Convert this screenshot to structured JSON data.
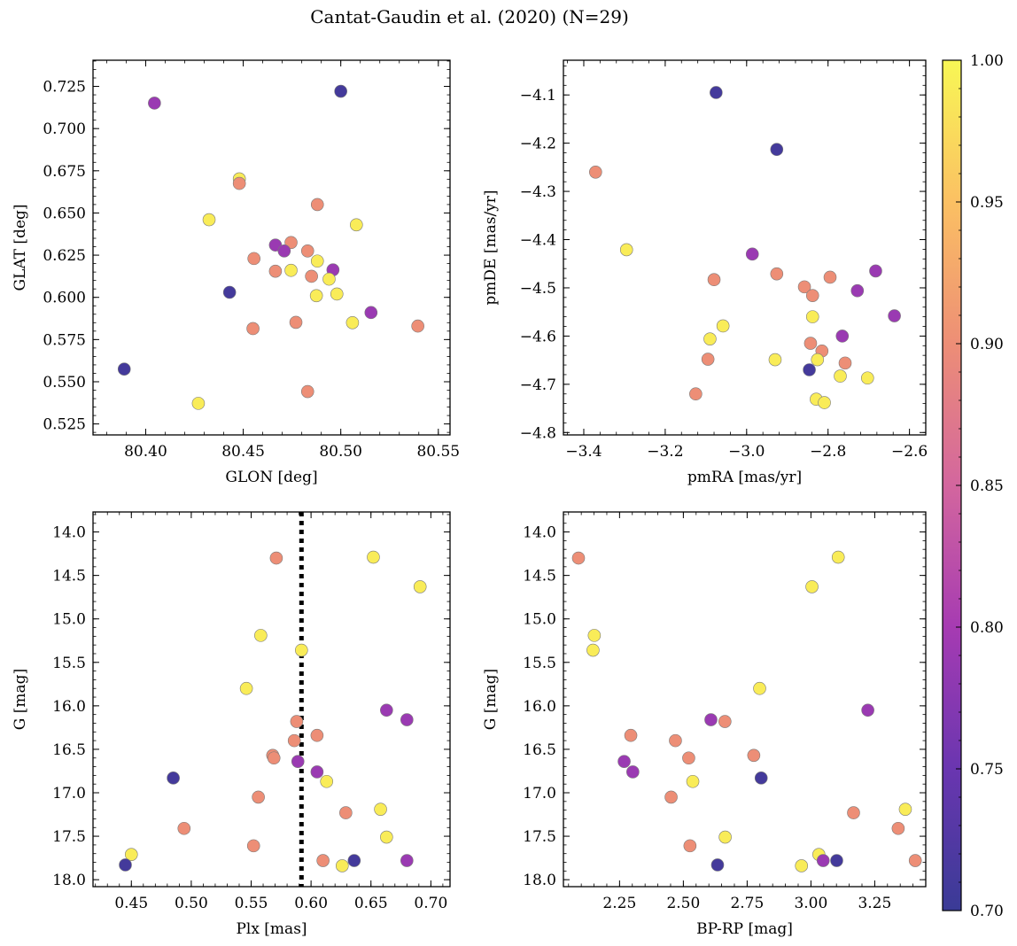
{
  "figure_title": "Cantat-Gaudin et al. (2020) (N=29)",
  "chart_data": [
    {
      "type": "scatter",
      "xlabel": "GLON [deg]",
      "ylabel": "GLAT [deg]",
      "xlim": [
        80.373,
        80.556
      ],
      "ylim": [
        0.5185,
        0.7405
      ],
      "xticks": [
        80.4,
        80.45,
        80.5,
        80.55
      ],
      "xtick_labels": [
        "80.40",
        "80.45",
        "80.50",
        "80.55"
      ],
      "yticks": [
        0.525,
        0.55,
        0.575,
        0.6,
        0.625,
        0.65,
        0.675,
        0.7,
        0.725
      ],
      "ytick_labels": [
        "0.525",
        "0.550",
        "0.575",
        "0.600",
        "0.625",
        "0.650",
        "0.675",
        "0.700",
        "0.725"
      ],
      "points": [
        {
          "x": 80.4045,
          "y": 0.7151,
          "c": 0.79
        },
        {
          "x": 80.5,
          "y": 0.7221,
          "c": 0.71
        },
        {
          "x": 80.448,
          "y": 0.6702,
          "c": 0.99
        },
        {
          "x": 80.448,
          "y": 0.6675,
          "c": 0.9
        },
        {
          "x": 80.488,
          "y": 0.655,
          "c": 0.9
        },
        {
          "x": 80.508,
          "y": 0.643,
          "c": 0.99
        },
        {
          "x": 80.4325,
          "y": 0.646,
          "c": 0.99
        },
        {
          "x": 80.4665,
          "y": 0.631,
          "c": 0.79
        },
        {
          "x": 80.4745,
          "y": 0.6325,
          "c": 0.9
        },
        {
          "x": 80.471,
          "y": 0.6275,
          "c": 0.79
        },
        {
          "x": 80.483,
          "y": 0.6275,
          "c": 0.9
        },
        {
          "x": 80.4555,
          "y": 0.623,
          "c": 0.9
        },
        {
          "x": 80.488,
          "y": 0.6215,
          "c": 0.99
        },
        {
          "x": 80.496,
          "y": 0.6163,
          "c": 0.79
        },
        {
          "x": 80.4665,
          "y": 0.6155,
          "c": 0.9
        },
        {
          "x": 80.4745,
          "y": 0.616,
          "c": 0.99
        },
        {
          "x": 80.485,
          "y": 0.6125,
          "c": 0.9
        },
        {
          "x": 80.494,
          "y": 0.6108,
          "c": 0.99
        },
        {
          "x": 80.443,
          "y": 0.603,
          "c": 0.71
        },
        {
          "x": 80.498,
          "y": 0.602,
          "c": 0.99
        },
        {
          "x": 80.4875,
          "y": 0.601,
          "c": 0.99
        },
        {
          "x": 80.5155,
          "y": 0.591,
          "c": 0.79
        },
        {
          "x": 80.477,
          "y": 0.5852,
          "c": 0.9
        },
        {
          "x": 80.506,
          "y": 0.585,
          "c": 0.99
        },
        {
          "x": 80.455,
          "y": 0.5815,
          "c": 0.9
        },
        {
          "x": 80.5395,
          "y": 0.583,
          "c": 0.9
        },
        {
          "x": 80.389,
          "y": 0.5575,
          "c": 0.71
        },
        {
          "x": 80.483,
          "y": 0.5442,
          "c": 0.9
        },
        {
          "x": 80.427,
          "y": 0.5372,
          "c": 0.99
        }
      ]
    },
    {
      "type": "scatter",
      "xlabel": "pmRA [mas/yr]",
      "ylabel": "pmDE [mas/yr]",
      "xlim": [
        -3.45,
        -2.56
      ],
      "ylim": [
        -4.805,
        -4.028
      ],
      "xticks": [
        -3.4,
        -3.2,
        -3.0,
        -2.8,
        -2.6
      ],
      "xtick_labels": [
        "−3.4",
        "−3.2",
        "−3.0",
        "−2.8",
        "−2.6"
      ],
      "yticks": [
        -4.8,
        -4.7,
        -4.6,
        -4.5,
        -4.4,
        -4.3,
        -4.2,
        -4.1
      ],
      "ytick_labels": [
        "−4.8",
        "−4.7",
        "−4.6",
        "−4.5",
        "−4.4",
        "−4.3",
        "−4.2",
        "−4.1"
      ],
      "points": [
        {
          "x": -3.075,
          "y": -4.095,
          "c": 0.71
        },
        {
          "x": -2.926,
          "y": -4.213,
          "c": 0.71
        },
        {
          "x": -3.371,
          "y": -4.26,
          "c": 0.9
        },
        {
          "x": -3.295,
          "y": -4.421,
          "c": 0.99
        },
        {
          "x": -2.986,
          "y": -4.43,
          "c": 0.79
        },
        {
          "x": -2.926,
          "y": -4.471,
          "c": 0.9
        },
        {
          "x": -2.683,
          "y": -4.465,
          "c": 0.79
        },
        {
          "x": -3.08,
          "y": -4.483,
          "c": 0.9
        },
        {
          "x": -2.795,
          "y": -4.478,
          "c": 0.9
        },
        {
          "x": -2.858,
          "y": -4.498,
          "c": 0.9
        },
        {
          "x": -2.728,
          "y": -4.506,
          "c": 0.79
        },
        {
          "x": -2.838,
          "y": -4.516,
          "c": 0.9
        },
        {
          "x": -2.637,
          "y": -4.558,
          "c": 0.79
        },
        {
          "x": -2.838,
          "y": -4.56,
          "c": 0.99
        },
        {
          "x": -3.058,
          "y": -4.579,
          "c": 0.99
        },
        {
          "x": -3.09,
          "y": -4.606,
          "c": 0.99
        },
        {
          "x": -2.765,
          "y": -4.6,
          "c": 0.79
        },
        {
          "x": -2.843,
          "y": -4.615,
          "c": 0.9
        },
        {
          "x": -2.815,
          "y": -4.631,
          "c": 0.9
        },
        {
          "x": -3.095,
          "y": -4.648,
          "c": 0.9
        },
        {
          "x": -2.93,
          "y": -4.649,
          "c": 0.99
        },
        {
          "x": -2.826,
          "y": -4.649,
          "c": 0.99
        },
        {
          "x": -2.758,
          "y": -4.656,
          "c": 0.9
        },
        {
          "x": -2.846,
          "y": -4.67,
          "c": 0.71
        },
        {
          "x": -2.77,
          "y": -4.683,
          "c": 0.99
        },
        {
          "x": -2.703,
          "y": -4.687,
          "c": 0.99
        },
        {
          "x": -3.125,
          "y": -4.72,
          "c": 0.9
        },
        {
          "x": -2.829,
          "y": -4.731,
          "c": 0.99
        },
        {
          "x": -2.809,
          "y": -4.738,
          "c": 0.99
        }
      ]
    },
    {
      "type": "scatter",
      "xlabel": "Plx [mas]",
      "ylabel": "G [mag]",
      "xlim": [
        0.418,
        0.716
      ],
      "ylim": [
        18.08,
        13.77
      ],
      "reference_line_x": 0.592,
      "xticks": [
        0.45,
        0.5,
        0.55,
        0.6,
        0.65,
        0.7
      ],
      "xtick_labels": [
        "0.45",
        "0.50",
        "0.55",
        "0.60",
        "0.65",
        "0.70"
      ],
      "yticks": [
        14.0,
        14.5,
        15.0,
        15.5,
        16.0,
        16.5,
        17.0,
        17.5,
        18.0
      ],
      "ytick_labels": [
        "14.0",
        "14.5",
        "15.0",
        "15.5",
        "16.0",
        "16.5",
        "17.0",
        "17.5",
        "18.0"
      ],
      "points": [
        {
          "x": 0.571,
          "y": 14.3,
          "c": 0.9
        },
        {
          "x": 0.652,
          "y": 14.29,
          "c": 0.99
        },
        {
          "x": 0.691,
          "y": 14.63,
          "c": 0.99
        },
        {
          "x": 0.558,
          "y": 15.19,
          "c": 0.99
        },
        {
          "x": 0.592,
          "y": 15.36,
          "c": 0.99
        },
        {
          "x": 0.546,
          "y": 15.8,
          "c": 0.99
        },
        {
          "x": 0.663,
          "y": 16.05,
          "c": 0.79
        },
        {
          "x": 0.68,
          "y": 16.16,
          "c": 0.79
        },
        {
          "x": 0.588,
          "y": 16.18,
          "c": 0.9
        },
        {
          "x": 0.605,
          "y": 16.34,
          "c": 0.9
        },
        {
          "x": 0.586,
          "y": 16.4,
          "c": 0.9
        },
        {
          "x": 0.568,
          "y": 16.57,
          "c": 0.9
        },
        {
          "x": 0.569,
          "y": 16.6,
          "c": 0.9
        },
        {
          "x": 0.589,
          "y": 16.64,
          "c": 0.79
        },
        {
          "x": 0.605,
          "y": 16.76,
          "c": 0.79
        },
        {
          "x": 0.485,
          "y": 16.83,
          "c": 0.71
        },
        {
          "x": 0.613,
          "y": 16.87,
          "c": 0.99
        },
        {
          "x": 0.556,
          "y": 17.05,
          "c": 0.9
        },
        {
          "x": 0.658,
          "y": 17.19,
          "c": 0.99
        },
        {
          "x": 0.629,
          "y": 17.23,
          "c": 0.9
        },
        {
          "x": 0.494,
          "y": 17.41,
          "c": 0.9
        },
        {
          "x": 0.663,
          "y": 17.51,
          "c": 0.99
        },
        {
          "x": 0.552,
          "y": 17.61,
          "c": 0.9
        },
        {
          "x": 0.45,
          "y": 17.71,
          "c": 0.99
        },
        {
          "x": 0.61,
          "y": 17.78,
          "c": 0.9
        },
        {
          "x": 0.636,
          "y": 17.78,
          "c": 0.71
        },
        {
          "x": 0.68,
          "y": 17.78,
          "c": 0.79
        },
        {
          "x": 0.445,
          "y": 17.83,
          "c": 0.71
        },
        {
          "x": 0.626,
          "y": 17.84,
          "c": 0.99
        }
      ]
    },
    {
      "type": "scatter",
      "xlabel": "BP-RP [mag]",
      "ylabel": "G [mag]",
      "xlim": [
        2.03,
        3.45
      ],
      "ylim": [
        18.08,
        13.77
      ],
      "xticks": [
        2.25,
        2.5,
        2.75,
        3.0,
        3.25
      ],
      "xtick_labels": [
        "2.25",
        "2.50",
        "2.75",
        "3.00",
        "3.25"
      ],
      "yticks": [
        14.0,
        14.5,
        15.0,
        15.5,
        16.0,
        16.5,
        17.0,
        17.5,
        18.0
      ],
      "ytick_labels": [
        "14.0",
        "14.5",
        "15.0",
        "15.5",
        "16.0",
        "16.5",
        "17.0",
        "17.5",
        "18.0"
      ],
      "points": [
        {
          "x": 2.089,
          "y": 14.3,
          "c": 0.9
        },
        {
          "x": 3.107,
          "y": 14.29,
          "c": 0.99
        },
        {
          "x": 3.004,
          "y": 14.63,
          "c": 0.99
        },
        {
          "x": 2.151,
          "y": 15.19,
          "c": 0.99
        },
        {
          "x": 2.146,
          "y": 15.36,
          "c": 0.99
        },
        {
          "x": 2.799,
          "y": 15.8,
          "c": 0.99
        },
        {
          "x": 3.223,
          "y": 16.05,
          "c": 0.79
        },
        {
          "x": 2.608,
          "y": 16.16,
          "c": 0.79
        },
        {
          "x": 2.663,
          "y": 16.18,
          "c": 0.9
        },
        {
          "x": 2.294,
          "y": 16.34,
          "c": 0.9
        },
        {
          "x": 2.469,
          "y": 16.4,
          "c": 0.9
        },
        {
          "x": 2.776,
          "y": 16.57,
          "c": 0.9
        },
        {
          "x": 2.521,
          "y": 16.6,
          "c": 0.9
        },
        {
          "x": 2.268,
          "y": 16.64,
          "c": 0.79
        },
        {
          "x": 2.302,
          "y": 16.76,
          "c": 0.79
        },
        {
          "x": 2.805,
          "y": 16.83,
          "c": 0.71
        },
        {
          "x": 2.537,
          "y": 16.87,
          "c": 0.99
        },
        {
          "x": 2.452,
          "y": 17.05,
          "c": 0.9
        },
        {
          "x": 3.37,
          "y": 17.19,
          "c": 0.99
        },
        {
          "x": 3.167,
          "y": 17.23,
          "c": 0.9
        },
        {
          "x": 3.342,
          "y": 17.41,
          "c": 0.9
        },
        {
          "x": 2.664,
          "y": 17.51,
          "c": 0.99
        },
        {
          "x": 2.526,
          "y": 17.61,
          "c": 0.9
        },
        {
          "x": 3.031,
          "y": 17.71,
          "c": 0.99
        },
        {
          "x": 3.048,
          "y": 17.78,
          "c": 0.79
        },
        {
          "x": 3.101,
          "y": 17.78,
          "c": 0.71
        },
        {
          "x": 3.409,
          "y": 17.78,
          "c": 0.9
        },
        {
          "x": 2.634,
          "y": 17.83,
          "c": 0.71
        },
        {
          "x": 2.963,
          "y": 17.84,
          "c": 0.99
        }
      ]
    }
  ],
  "colorbar": {
    "cmap": "plasma",
    "range": [
      0.7,
      1.0
    ],
    "ticks": [
      0.7,
      0.75,
      0.8,
      0.85,
      0.9,
      0.95,
      1.0
    ],
    "tick_labels": [
      "0.70",
      "0.75",
      "0.80",
      "0.85",
      "0.90",
      "0.95",
      "1.00"
    ]
  }
}
